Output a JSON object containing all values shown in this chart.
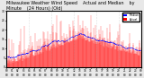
{
  "title": "Milwaukee Weather Wind Speed    Actual and Median    by Minute    (24 Hours) (Old)",
  "title_fontsize": 3.5,
  "bg_color": "#e8e8e8",
  "plot_bg_color": "#ffffff",
  "actual_color": "#ff0000",
  "median_color": "#0000ff",
  "n_points": 1440,
  "seed": 42,
  "ylabel_fontsize": 3.0,
  "xlabel_fontsize": 2.5,
  "tick_fontsize": 2.2,
  "ylim": [
    0,
    30
  ],
  "xlim": [
    0,
    1440
  ],
  "grid_color": "#aaaaaa",
  "legend_actual": "Actual",
  "legend_median": "Median"
}
